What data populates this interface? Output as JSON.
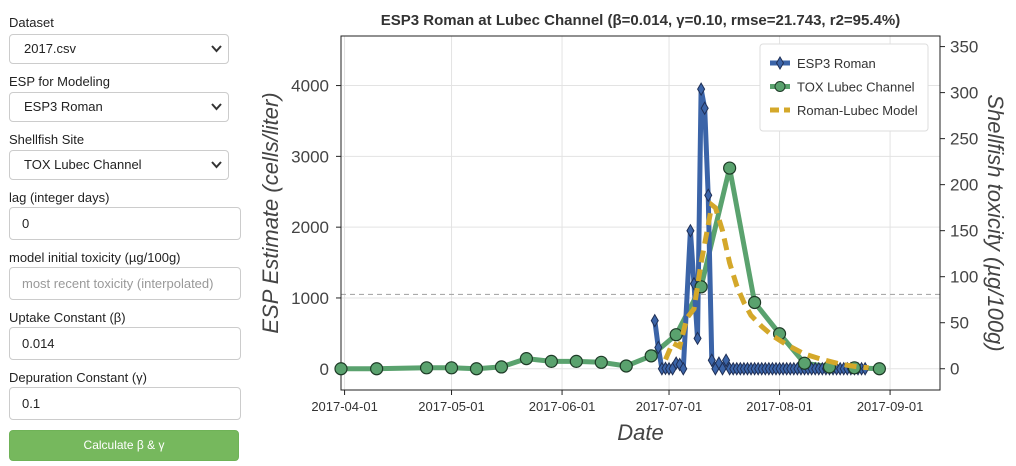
{
  "sidebar": {
    "dataset_label": "Dataset",
    "dataset_value": "2017.csv",
    "esp_label": "ESP for Modeling",
    "esp_value": "ESP3 Roman",
    "site_label": "Shellfish Site",
    "site_value": "TOX Lubec Channel",
    "lag_label": "lag (integer days)",
    "lag_value": "0",
    "init_label": "model initial toxicity (µg/100g)",
    "init_placeholder": "most recent toxicity (interpolated)",
    "uptake_label": "Uptake Constant (β)",
    "uptake_value": "0.014",
    "depuration_label": "Depuration Constant (γ)",
    "depuration_value": "0.1",
    "button_label": "Calculate β & γ",
    "button_color": "#76b85d"
  },
  "icons": {
    "select_chevron": "chevron-down-icon"
  },
  "chart_data": {
    "type": "line",
    "title": "ESP3 Roman at Lubec Channel (β=0.014, γ=0.10, rmse=21.743, r2=95.4%)",
    "xlabel": "Date",
    "ylabel_left": "ESP Estimate (cells/liter)",
    "ylabel_right": "Shellfish toxicity (µg/100g)",
    "xlim": [
      "2017-03-31",
      "2017-09-15"
    ],
    "ylim_left": [
      -300,
      4700
    ],
    "ylim_right": [
      -23.1,
      361.5
    ],
    "x_ticks": [
      "2017-04-01",
      "2017-05-01",
      "2017-06-01",
      "2017-07-01",
      "2017-08-01",
      "2017-09-01"
    ],
    "y_ticks_left": [
      "0",
      "1000",
      "2000",
      "3000",
      "4000"
    ],
    "y_ticks_right": [
      "0",
      "50",
      "100",
      "150",
      "200",
      "250",
      "300",
      "350"
    ],
    "hline_left": 1050,
    "grid": true,
    "legend_position": "top-right",
    "series": [
      {
        "name": "ESP3 Roman",
        "axis": "left",
        "color": "#3b64a8",
        "marker": "diamond",
        "x": [
          "2017-06-27",
          "2017-06-28",
          "2017-06-29",
          "2017-06-30",
          "2017-07-01",
          "2017-07-02",
          "2017-07-03",
          "2017-07-04",
          "2017-07-05",
          "2017-07-07",
          "2017-07-08",
          "2017-07-09",
          "2017-07-10",
          "2017-07-11",
          "2017-07-12",
          "2017-07-13",
          "2017-07-14",
          "2017-07-15",
          "2017-07-16",
          "2017-07-17",
          "2017-07-18",
          "2017-07-19",
          "2017-07-20",
          "2017-07-21",
          "2017-07-22",
          "2017-07-23",
          "2017-07-24",
          "2017-07-25",
          "2017-07-26",
          "2017-07-27",
          "2017-07-28",
          "2017-07-29",
          "2017-07-30",
          "2017-07-31",
          "2017-08-01",
          "2017-08-02",
          "2017-08-03",
          "2017-08-04",
          "2017-08-05",
          "2017-08-06",
          "2017-08-07",
          "2017-08-08",
          "2017-08-09",
          "2017-08-10",
          "2017-08-11",
          "2017-08-12",
          "2017-08-13",
          "2017-08-14",
          "2017-08-15",
          "2017-08-16",
          "2017-08-17",
          "2017-08-18",
          "2017-08-19",
          "2017-08-20",
          "2017-08-21",
          "2017-08-22",
          "2017-08-23",
          "2017-08-24",
          "2017-08-25"
        ],
        "values": [
          680,
          300,
          0,
          5,
          0,
          0,
          80,
          60,
          0,
          1950,
          1200,
          430,
          3950,
          3680,
          2450,
          120,
          0,
          80,
          0,
          120,
          0,
          0,
          0,
          0,
          0,
          0,
          0,
          0,
          0,
          0,
          0,
          0,
          0,
          0,
          0,
          0,
          0,
          0,
          0,
          0,
          0,
          0,
          0,
          0,
          0,
          0,
          0,
          0,
          0,
          0,
          0,
          0,
          0,
          0,
          0,
          0,
          0,
          0,
          0
        ]
      },
      {
        "name": "TOX Lubec Channel",
        "axis": "right",
        "color": "#5aa26e",
        "marker": "circle",
        "x": [
          "2017-03-31",
          "2017-04-10",
          "2017-04-24",
          "2017-05-01",
          "2017-05-08",
          "2017-05-15",
          "2017-05-22",
          "2017-05-29",
          "2017-06-05",
          "2017-06-12",
          "2017-06-19",
          "2017-06-26",
          "2017-07-03",
          "2017-07-10",
          "2017-07-18",
          "2017-07-25",
          "2017-08-01",
          "2017-08-08",
          "2017-08-15",
          "2017-08-22",
          "2017-08-29"
        ],
        "values": [
          0,
          0,
          1,
          1,
          0,
          2,
          11,
          8,
          8,
          7,
          3,
          14,
          37,
          89,
          218,
          72,
          38,
          6,
          2,
          1,
          0
        ]
      },
      {
        "name": "Roman-Lubec Model",
        "axis": "right",
        "color": "#d4a82a",
        "marker": "none",
        "dashed": true,
        "x": [
          "2017-06-30",
          "2017-07-02",
          "2017-07-04",
          "2017-07-06",
          "2017-07-08",
          "2017-07-10",
          "2017-07-12",
          "2017-07-13",
          "2017-07-14",
          "2017-07-16",
          "2017-07-18",
          "2017-07-20",
          "2017-07-22",
          "2017-07-24",
          "2017-07-27",
          "2017-07-30",
          "2017-08-03",
          "2017-08-08",
          "2017-08-13",
          "2017-08-18",
          "2017-08-23",
          "2017-08-26"
        ],
        "values": [
          10,
          28,
          24,
          55,
          65,
          115,
          156,
          178,
          175,
          150,
          115,
          90,
          72,
          58,
          46,
          36,
          26,
          16,
          10,
          5,
          2,
          1
        ]
      }
    ]
  }
}
